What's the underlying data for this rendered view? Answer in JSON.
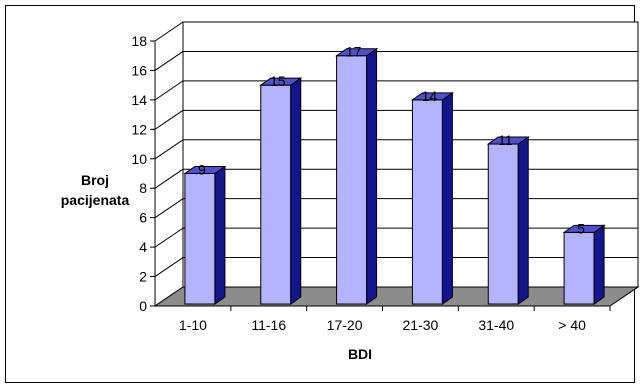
{
  "chart_data": {
    "type": "bar",
    "categories": [
      "1-10",
      "11-16",
      "17-20",
      "21-30",
      "31-40",
      "> 40"
    ],
    "values": [
      9,
      15,
      17,
      14,
      11,
      5
    ],
    "data_labels": [
      "9",
      "15",
      "17",
      "14",
      "11",
      "5"
    ],
    "yticks": [
      "0",
      "2",
      "4",
      "6",
      "8",
      "10",
      "12",
      "14",
      "16",
      "18"
    ],
    "ylim": [
      0,
      18
    ],
    "ylabel_lines": [
      "Broj",
      "pacijenata"
    ],
    "xlabel": "BDI",
    "grid": true,
    "style": "3d-bar",
    "colors": {
      "bar_front": "#b3b3ff",
      "bar_side": "#14148c",
      "bar_top": "#5050c8",
      "floor": "#8c8c8c",
      "wall": "#ffffff",
      "grid": "#000000"
    }
  }
}
